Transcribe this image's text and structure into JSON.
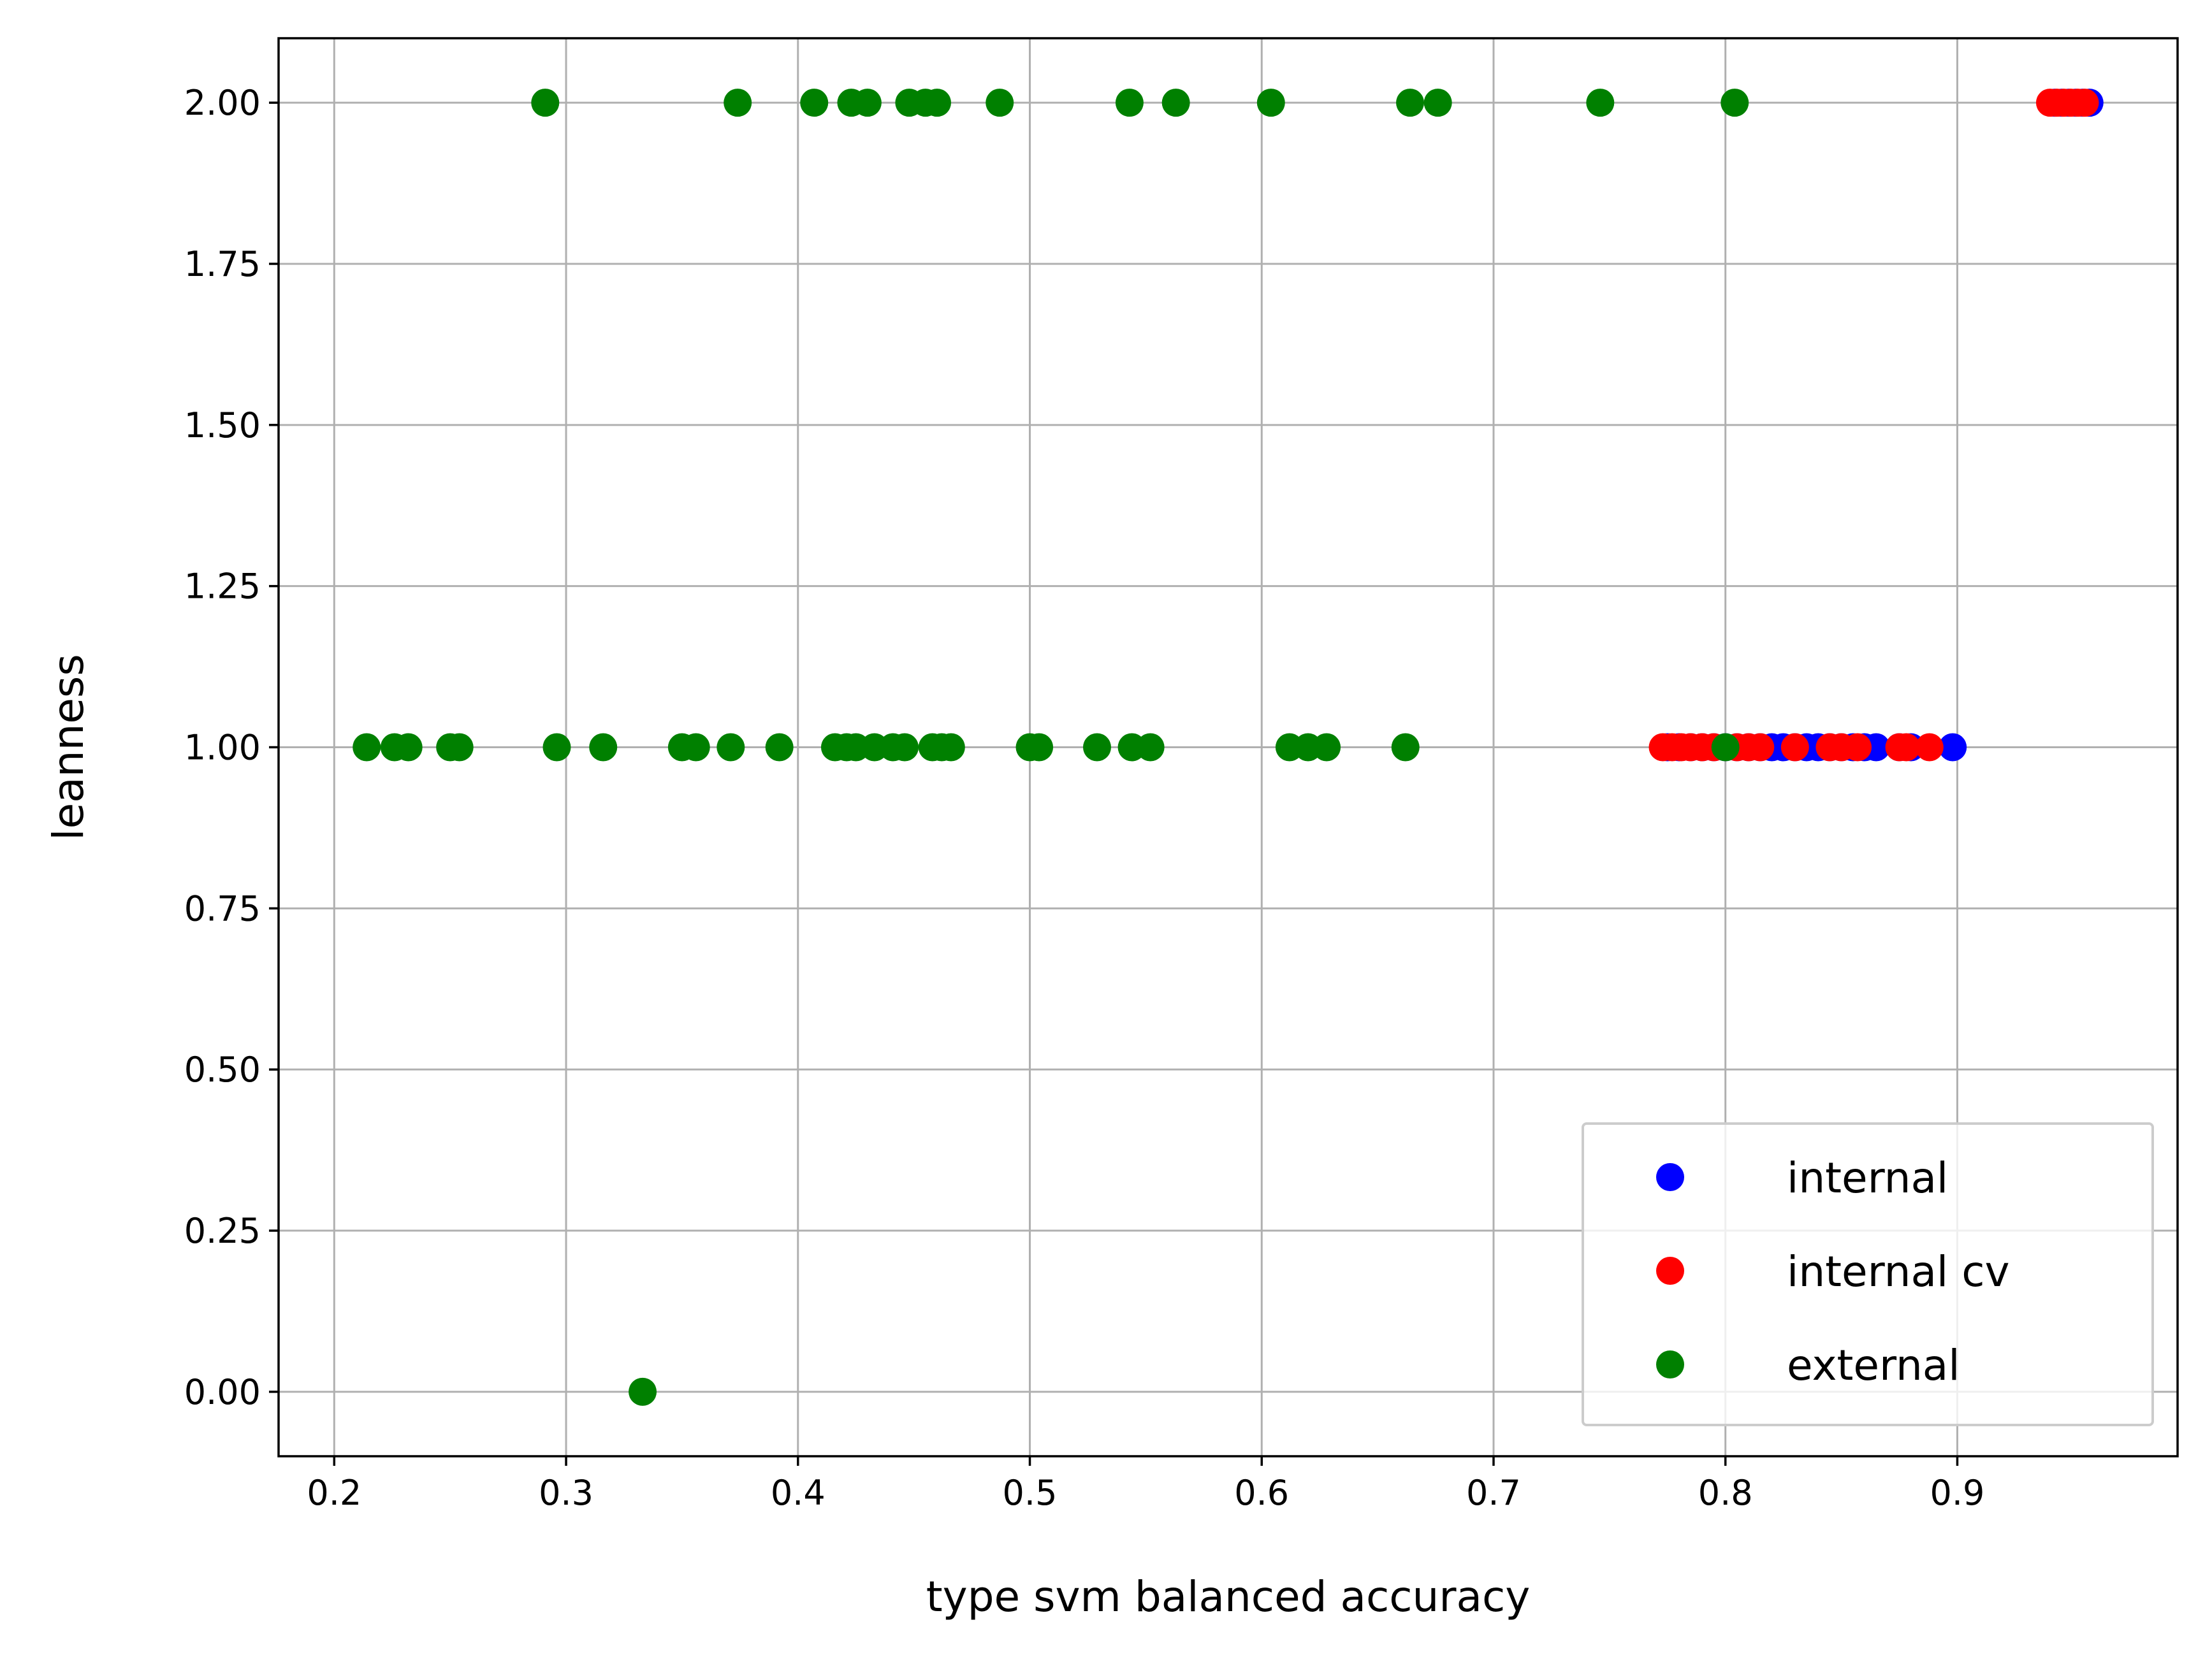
{
  "chart_data": {
    "type": "scatter",
    "title": "",
    "xlabel": "type svm balanced accuracy",
    "ylabel": "leanness",
    "xlim": [
      0.176,
      0.995
    ],
    "ylim": [
      -0.1,
      2.1
    ],
    "xticks": [
      "0.2",
      "0.3",
      "0.4",
      "0.5",
      "0.6",
      "0.7",
      "0.8",
      "0.9"
    ],
    "yticks": [
      "0.00",
      "0.25",
      "0.50",
      "0.75",
      "1.00",
      "1.25",
      "1.50",
      "1.75",
      "2.00"
    ],
    "grid": true,
    "legend_position": "bottom-right",
    "series": [
      {
        "name": "internal",
        "color": "#0000ff",
        "points": [
          [
            0.775,
            1
          ],
          [
            0.78,
            1
          ],
          [
            0.785,
            1
          ],
          [
            0.79,
            1
          ],
          [
            0.795,
            1
          ],
          [
            0.8,
            1
          ],
          [
            0.805,
            1
          ],
          [
            0.81,
            1
          ],
          [
            0.815,
            1
          ],
          [
            0.82,
            1
          ],
          [
            0.825,
            1
          ],
          [
            0.83,
            1
          ],
          [
            0.835,
            1
          ],
          [
            0.84,
            1
          ],
          [
            0.845,
            1
          ],
          [
            0.85,
            1
          ],
          [
            0.855,
            1
          ],
          [
            0.86,
            1
          ],
          [
            0.865,
            1
          ],
          [
            0.875,
            1
          ],
          [
            0.88,
            1
          ],
          [
            0.898,
            1
          ],
          [
            0.942,
            2
          ],
          [
            0.945,
            2
          ],
          [
            0.948,
            2
          ],
          [
            0.951,
            2
          ],
          [
            0.954,
            2
          ],
          [
            0.957,
            2
          ]
        ]
      },
      {
        "name": "internal cv",
        "color": "#ff0000",
        "points": [
          [
            0.773,
            1
          ],
          [
            0.777,
            1
          ],
          [
            0.781,
            1
          ],
          [
            0.785,
            1
          ],
          [
            0.79,
            1
          ],
          [
            0.795,
            1
          ],
          [
            0.805,
            1
          ],
          [
            0.81,
            1
          ],
          [
            0.815,
            1
          ],
          [
            0.83,
            1
          ],
          [
            0.845,
            1
          ],
          [
            0.85,
            1
          ],
          [
            0.857,
            1
          ],
          [
            0.875,
            1
          ],
          [
            0.878,
            1
          ],
          [
            0.888,
            1
          ],
          [
            0.94,
            2
          ],
          [
            0.943,
            2
          ],
          [
            0.946,
            2
          ],
          [
            0.949,
            2
          ],
          [
            0.952,
            2
          ],
          [
            0.955,
            2
          ]
        ]
      },
      {
        "name": "external",
        "color": "#008000",
        "points": [
          [
            0.291,
            2
          ],
          [
            0.374,
            2
          ],
          [
            0.407,
            2
          ],
          [
            0.423,
            2
          ],
          [
            0.43,
            2
          ],
          [
            0.448,
            2
          ],
          [
            0.455,
            2
          ],
          [
            0.46,
            2
          ],
          [
            0.487,
            2
          ],
          [
            0.543,
            2
          ],
          [
            0.563,
            2
          ],
          [
            0.604,
            2
          ],
          [
            0.664,
            2
          ],
          [
            0.676,
            2
          ],
          [
            0.746,
            2
          ],
          [
            0.804,
            2
          ],
          [
            0.214,
            1
          ],
          [
            0.226,
            1
          ],
          [
            0.232,
            1
          ],
          [
            0.25,
            1
          ],
          [
            0.254,
            1
          ],
          [
            0.296,
            1
          ],
          [
            0.316,
            1
          ],
          [
            0.35,
            1
          ],
          [
            0.356,
            1
          ],
          [
            0.371,
            1
          ],
          [
            0.392,
            1
          ],
          [
            0.416,
            1
          ],
          [
            0.421,
            1
          ],
          [
            0.425,
            1
          ],
          [
            0.433,
            1
          ],
          [
            0.441,
            1
          ],
          [
            0.446,
            1
          ],
          [
            0.458,
            1
          ],
          [
            0.462,
            1
          ],
          [
            0.466,
            1
          ],
          [
            0.5,
            1
          ],
          [
            0.504,
            1
          ],
          [
            0.529,
            1
          ],
          [
            0.544,
            1
          ],
          [
            0.552,
            1
          ],
          [
            0.612,
            1
          ],
          [
            0.62,
            1
          ],
          [
            0.628,
            1
          ],
          [
            0.662,
            1
          ],
          [
            0.8,
            1
          ],
          [
            0.333,
            0
          ]
        ]
      }
    ]
  }
}
